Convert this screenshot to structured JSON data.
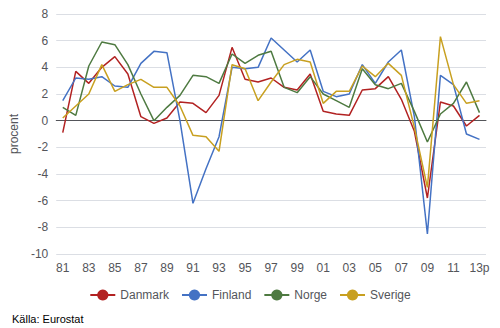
{
  "chart_data": {
    "type": "line",
    "categories": [
      "81",
      null,
      "83",
      null,
      "85",
      null,
      "87",
      null,
      "89",
      null,
      "91",
      null,
      "93",
      null,
      "95",
      null,
      "97",
      null,
      "99",
      null,
      "01",
      null,
      "03",
      null,
      "05",
      null,
      "07",
      null,
      "09",
      null,
      "11",
      null,
      "13p"
    ],
    "series": [
      {
        "name": "Danmark",
        "color": "#b22222",
        "values": [
          -0.9,
          3.7,
          2.8,
          4.0,
          4.8,
          3.5,
          0.3,
          -0.2,
          0.2,
          1.4,
          1.3,
          0.6,
          1.9,
          5.5,
          3.1,
          2.9,
          3.2,
          2.5,
          2.3,
          3.5,
          0.7,
          0.5,
          0.4,
          2.3,
          2.4,
          3.3,
          1.6,
          -0.8,
          -5.8,
          1.4,
          1.1,
          -0.4,
          0.4
        ]
      },
      {
        "name": "Finland",
        "color": "#4472c4",
        "values": [
          1.5,
          3.2,
          3.1,
          3.3,
          2.6,
          2.5,
          4.3,
          5.2,
          5.1,
          0.0,
          -6.2,
          -3.6,
          -1.2,
          4.0,
          3.9,
          4.0,
          6.2,
          5.3,
          4.4,
          5.3,
          2.2,
          1.8,
          2.0,
          4.2,
          2.8,
          4.4,
          5.3,
          0.3,
          -8.5,
          3.4,
          2.7,
          -1.0,
          -1.4
        ]
      },
      {
        "name": "Norge",
        "color": "#4e7a41",
        "values": [
          1.0,
          0.4,
          4.1,
          5.9,
          5.7,
          4.2,
          2.0,
          0.0,
          1.0,
          1.9,
          3.4,
          3.3,
          2.8,
          5.0,
          4.3,
          4.9,
          5.2,
          2.5,
          2.1,
          3.3,
          2.0,
          1.5,
          1.0,
          3.9,
          2.7,
          2.4,
          2.8,
          0.7,
          -1.6,
          0.5,
          1.3,
          2.9,
          0.6
        ]
      },
      {
        "name": "Sverige",
        "color": "#c8a020",
        "values": [
          0.2,
          1.1,
          2.0,
          4.2,
          2.2,
          2.7,
          3.1,
          2.5,
          2.5,
          1.1,
          -1.1,
          -1.2,
          -2.3,
          4.2,
          3.9,
          1.5,
          2.9,
          4.2,
          4.6,
          4.4,
          1.3,
          2.2,
          2.2,
          4.1,
          3.3,
          4.3,
          3.4,
          -0.5,
          -5.0,
          6.3,
          2.7,
          1.3,
          1.5
        ]
      }
    ],
    "ylabel": "procent",
    "ylim": [
      -10,
      8
    ],
    "yticks": [
      -10,
      -8,
      -6,
      -4,
      -2,
      0,
      2,
      4,
      6,
      8
    ],
    "grid": true,
    "legend": "bottom",
    "annotations": [
      "Källa: Eurostat"
    ]
  }
}
